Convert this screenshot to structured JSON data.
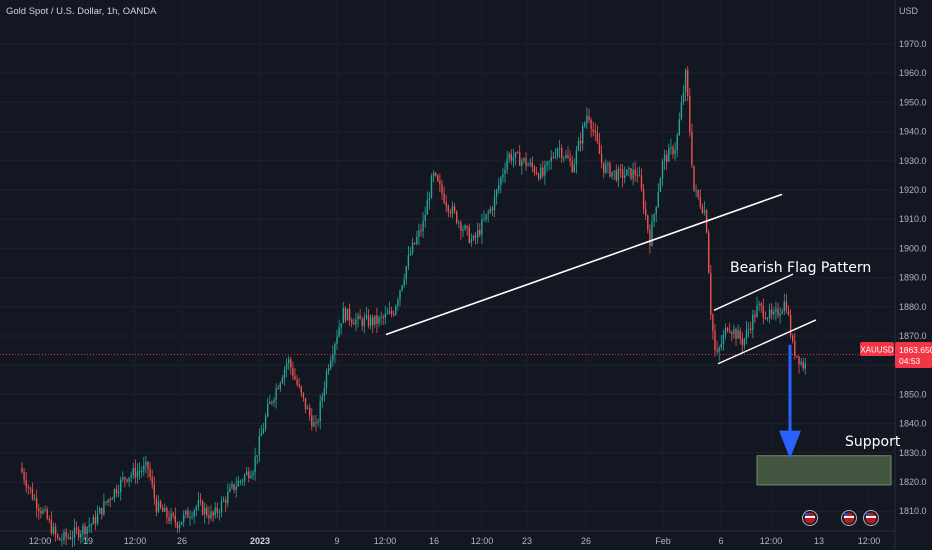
{
  "header": {
    "symbol_title": "Gold Spot / U.S. Dollar, 1h, OANDA",
    "currency": "USD"
  },
  "price_badge": {
    "symbol": "XAUUSD",
    "price": "1863.650",
    "countdown": "04:53"
  },
  "annotations": {
    "flag_label": "Bearish Flag Pattern",
    "support_label": "Support"
  },
  "colors": {
    "background": "#131722",
    "up_candle": "#26a69a",
    "down_candle": "#ef5350",
    "trendline": "#ffffff",
    "arrow": "#2962ff",
    "support_zone": "#4c6046",
    "price_line": "#f23645"
  },
  "chart_data": {
    "type": "candlestick",
    "title": "Gold Spot / U.S. Dollar, 1h, OANDA",
    "y_axis": {
      "unit": "USD",
      "ticks": [
        1970,
        1960,
        1950,
        1940,
        1930,
        1920,
        1910,
        1900,
        1890,
        1880,
        1870,
        1860,
        1850,
        1840,
        1830,
        1820,
        1810
      ],
      "range": [
        1807,
        1985
      ]
    },
    "x_axis": {
      "ticks": [
        {
          "label": "12:00",
          "bold": false
        },
        {
          "label": "19",
          "bold": false
        },
        {
          "label": "12:00",
          "bold": false
        },
        {
          "label": "26",
          "bold": false
        },
        {
          "label": "2023",
          "bold": true
        },
        {
          "label": "9",
          "bold": false
        },
        {
          "label": "12:00",
          "bold": false
        },
        {
          "label": "16",
          "bold": false
        },
        {
          "label": "12:00",
          "bold": false
        },
        {
          "label": "23",
          "bold": false
        },
        {
          "label": "26",
          "bold": false
        },
        {
          "label": "Feb",
          "bold": false
        },
        {
          "label": "6",
          "bold": false
        },
        {
          "label": "12:00",
          "bold": false
        },
        {
          "label": "13",
          "bold": false
        },
        {
          "label": "12:00",
          "bold": false
        }
      ]
    },
    "price_anchors": [
      [
        22,
        1825
      ],
      [
        35,
        1815
      ],
      [
        48,
        1808
      ],
      [
        60,
        1800
      ],
      [
        75,
        1802
      ],
      [
        95,
        1806
      ],
      [
        112,
        1815
      ],
      [
        128,
        1822
      ],
      [
        150,
        1825
      ],
      [
        158,
        1812
      ],
      [
        170,
        1808
      ],
      [
        180,
        1806
      ],
      [
        200,
        1812
      ],
      [
        215,
        1808
      ],
      [
        235,
        1818
      ],
      [
        255,
        1825
      ],
      [
        270,
        1845
      ],
      [
        290,
        1862
      ],
      [
        305,
        1848
      ],
      [
        318,
        1838
      ],
      [
        330,
        1860
      ],
      [
        345,
        1878
      ],
      [
        360,
        1875
      ],
      [
        380,
        1875
      ],
      [
        395,
        1878
      ],
      [
        412,
        1898
      ],
      [
        425,
        1908
      ],
      [
        435,
        1925
      ],
      [
        450,
        1915
      ],
      [
        475,
        1902
      ],
      [
        495,
        1915
      ],
      [
        510,
        1932
      ],
      [
        525,
        1930
      ],
      [
        545,
        1925
      ],
      [
        560,
        1935
      ],
      [
        575,
        1928
      ],
      [
        590,
        1947
      ],
      [
        605,
        1928
      ],
      [
        620,
        1925
      ],
      [
        640,
        1926
      ],
      [
        652,
        1903
      ],
      [
        665,
        1930
      ],
      [
        678,
        1935
      ],
      [
        688,
        1960
      ],
      [
        696,
        1920
      ],
      [
        708,
        1912
      ],
      [
        713,
        1878
      ],
      [
        718,
        1862
      ],
      [
        730,
        1874
      ],
      [
        745,
        1868
      ],
      [
        760,
        1880
      ],
      [
        775,
        1876
      ],
      [
        788,
        1882
      ],
      [
        795,
        1866
      ],
      [
        805,
        1860
      ]
    ],
    "current_price": 1863.65,
    "trendlines": [
      {
        "name": "Uptrend support line",
        "from": [
          386,
          1870.5
        ],
        "to": [
          782,
          1918.5
        ]
      },
      {
        "name": "Flag upper channel",
        "from": [
          714,
          1878.8
        ],
        "to": [
          793,
          1891.2
        ]
      },
      {
        "name": "Flag lower channel",
        "from": [
          718,
          1860.5
        ],
        "to": [
          816,
          1875.5
        ]
      }
    ],
    "projection_arrow": {
      "from_price": 1867,
      "to_price": 1828
    },
    "support_zone": {
      "low": 1819,
      "high": 1829
    }
  }
}
